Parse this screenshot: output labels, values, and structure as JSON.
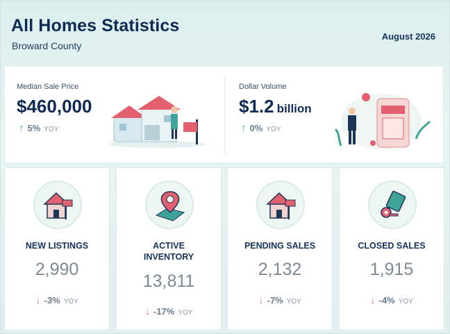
{
  "header": {
    "title": "All Homes Statistics",
    "subtitle": "Broward County",
    "date": "August 2026"
  },
  "top_stats": [
    {
      "label": "Median Sale Price",
      "value": "$460,000",
      "unit": "",
      "direction": "up",
      "change": "5%",
      "tag": "YOY"
    },
    {
      "label": "Dollar Volume",
      "value": "$1.2",
      "unit": "billion",
      "direction": "up",
      "change": "0%",
      "tag": "YOY"
    }
  ],
  "cards": [
    {
      "label_lines": [
        "NEW LISTINGS"
      ],
      "value": "2,990",
      "direction": "down",
      "change": "-3%",
      "tag": "YOY",
      "icon": "house-for-sale-icon"
    },
    {
      "label_lines": [
        "ACTIVE",
        "INVENTORY"
      ],
      "value": "13,811",
      "direction": "down",
      "change": "-17%",
      "tag": "YOY",
      "icon": "map-pin-icon"
    },
    {
      "label_lines": [
        "PENDING SALES"
      ],
      "value": "2,132",
      "direction": "down",
      "change": "-7%",
      "tag": "YOY",
      "icon": "house-for-sale-icon"
    },
    {
      "label_lines": [
        "CLOSED SALES"
      ],
      "value": "1,915",
      "direction": "down",
      "change": "-4%",
      "tag": "YOY",
      "icon": "key-icon"
    }
  ],
  "arrows": {
    "up": "↑",
    "down": "↓"
  },
  "colors": {
    "navy": "#0f2b55",
    "teal": "#47a8a0",
    "red": "#e27a80",
    "pink": "#e2606f"
  }
}
